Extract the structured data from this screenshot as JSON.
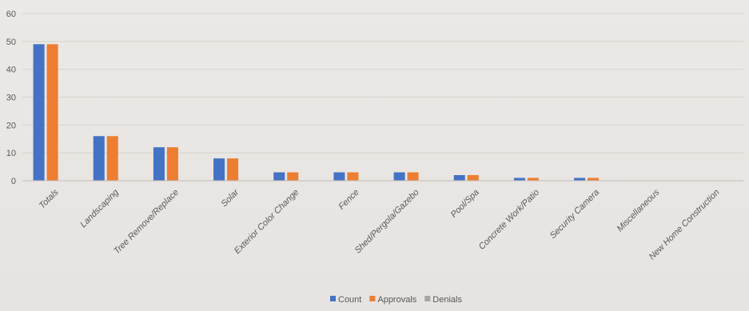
{
  "chart_data": {
    "type": "bar",
    "categories": [
      "Totals",
      "Landscaping",
      "Tree Remove/Replace",
      "Solar",
      "Exterior Color Change",
      "Fence",
      "Shed/Pergola/Gazebo",
      "Pool/Spa",
      "Concrete Work/Patio",
      "Security Camera",
      "Miscellaneous",
      "New Home Construction"
    ],
    "series": [
      {
        "name": "Count",
        "color": "#4472c4",
        "values": [
          49,
          16,
          12,
          8,
          3,
          3,
          3,
          2,
          1,
          1,
          0,
          0
        ]
      },
      {
        "name": "Approvals",
        "color": "#ed7d31",
        "values": [
          49,
          16,
          12,
          8,
          3,
          3,
          3,
          2,
          1,
          1,
          0,
          0
        ]
      },
      {
        "name": "Denials",
        "color": "#a5a5a5",
        "values": [
          0,
          0,
          0,
          0,
          0,
          0,
          0,
          0,
          0,
          0,
          0,
          0
        ]
      }
    ],
    "yticks": [
      0,
      10,
      20,
      30,
      40,
      50,
      60
    ],
    "ylim": [
      0,
      60
    ],
    "grid": true,
    "legend": "bottom"
  }
}
